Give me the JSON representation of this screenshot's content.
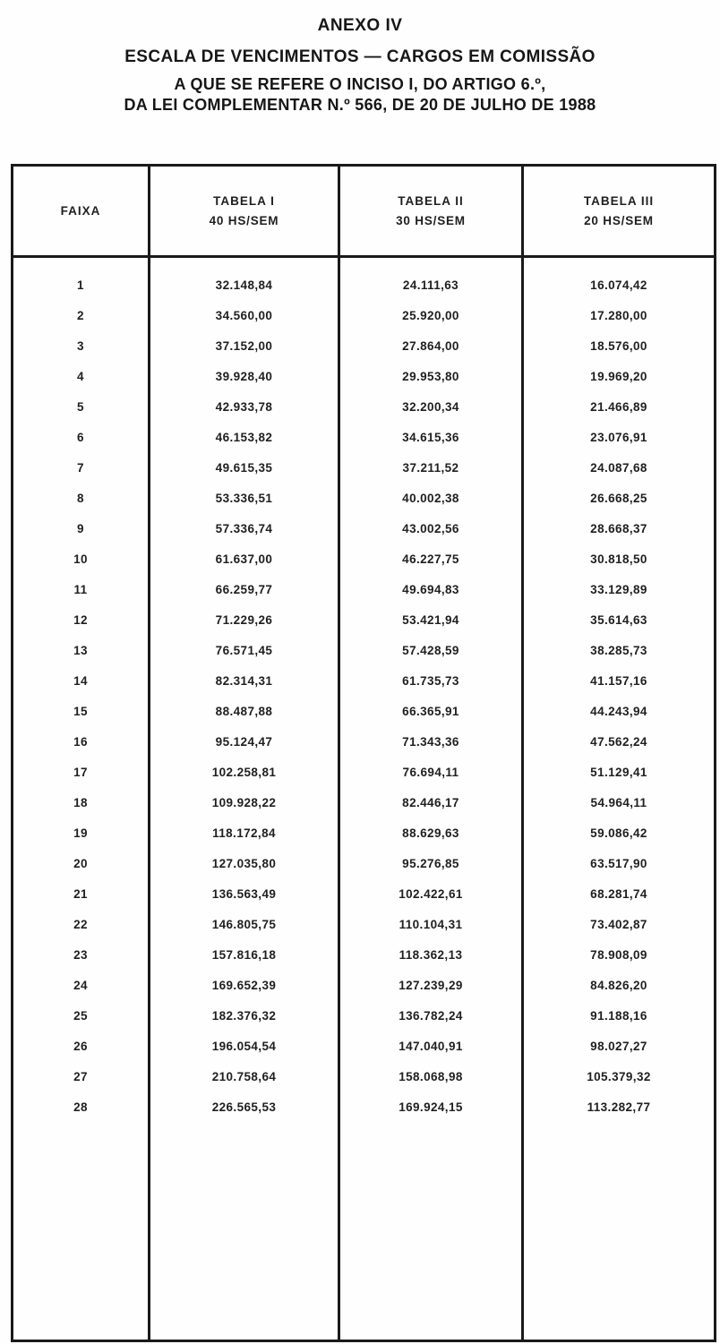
{
  "header": {
    "line1": "ANEXO IV",
    "line2": "ESCALA DE VENCIMENTOS — CARGOS EM COMISSÃO",
    "line3": "A QUE SE REFERE O INCISO I, DO ARTIGO 6.º,",
    "line4": "DA LEI COMPLEMENTAR N.º 566, DE 20 DE JULHO DE 1988"
  },
  "table": {
    "columns": [
      {
        "label": "FAIXA",
        "sub": ""
      },
      {
        "label": "TABELA I",
        "sub": "40 HS/SEM"
      },
      {
        "label": "TABELA II",
        "sub": "30 HS/SEM"
      },
      {
        "label": "TABELA III",
        "sub": "20 HS/SEM"
      }
    ],
    "rows": [
      {
        "faixa": "1",
        "t1": "32.148,84",
        "t2": "24.111,63",
        "t3": "16.074,42"
      },
      {
        "faixa": "2",
        "t1": "34.560,00",
        "t2": "25.920,00",
        "t3": "17.280,00"
      },
      {
        "faixa": "3",
        "t1": "37.152,00",
        "t2": "27.864,00",
        "t3": "18.576,00"
      },
      {
        "faixa": "4",
        "t1": "39.928,40",
        "t2": "29.953,80",
        "t3": "19.969,20"
      },
      {
        "faixa": "5",
        "t1": "42.933,78",
        "t2": "32.200,34",
        "t3": "21.466,89"
      },
      {
        "faixa": "6",
        "t1": "46.153,82",
        "t2": "34.615,36",
        "t3": "23.076,91"
      },
      {
        "faixa": "7",
        "t1": "49.615,35",
        "t2": "37.211,52",
        "t3": "24.087,68"
      },
      {
        "faixa": "8",
        "t1": "53.336,51",
        "t2": "40.002,38",
        "t3": "26.668,25"
      },
      {
        "faixa": "9",
        "t1": "57.336,74",
        "t2": "43.002,56",
        "t3": "28.668,37"
      },
      {
        "faixa": "10",
        "t1": "61.637,00",
        "t2": "46.227,75",
        "t3": "30.818,50"
      },
      {
        "faixa": "11",
        "t1": "66.259,77",
        "t2": "49.694,83",
        "t3": "33.129,89"
      },
      {
        "faixa": "12",
        "t1": "71.229,26",
        "t2": "53.421,94",
        "t3": "35.614,63"
      },
      {
        "faixa": "13",
        "t1": "76.571,45",
        "t2": "57.428,59",
        "t3": "38.285,73"
      },
      {
        "faixa": "14",
        "t1": "82.314,31",
        "t2": "61.735,73",
        "t3": "41.157,16"
      },
      {
        "faixa": "15",
        "t1": "88.487,88",
        "t2": "66.365,91",
        "t3": "44.243,94"
      },
      {
        "faixa": "16",
        "t1": "95.124,47",
        "t2": "71.343,36",
        "t3": "47.562,24"
      },
      {
        "faixa": "17",
        "t1": "102.258,81",
        "t2": "76.694,11",
        "t3": "51.129,41"
      },
      {
        "faixa": "18",
        "t1": "109.928,22",
        "t2": "82.446,17",
        "t3": "54.964,11"
      },
      {
        "faixa": "19",
        "t1": "118.172,84",
        "t2": "88.629,63",
        "t3": "59.086,42"
      },
      {
        "faixa": "20",
        "t1": "127.035,80",
        "t2": "95.276,85",
        "t3": "63.517,90"
      },
      {
        "faixa": "21",
        "t1": "136.563,49",
        "t2": "102.422,61",
        "t3": "68.281,74"
      },
      {
        "faixa": "22",
        "t1": "146.805,75",
        "t2": "110.104,31",
        "t3": "73.402,87"
      },
      {
        "faixa": "23",
        "t1": "157.816,18",
        "t2": "118.362,13",
        "t3": "78.908,09"
      },
      {
        "faixa": "24",
        "t1": "169.652,39",
        "t2": "127.239,29",
        "t3": "84.826,20"
      },
      {
        "faixa": "25",
        "t1": "182.376,32",
        "t2": "136.782,24",
        "t3": "91.188,16"
      },
      {
        "faixa": "26",
        "t1": "196.054,54",
        "t2": "147.040,91",
        "t3": "98.027,27"
      },
      {
        "faixa": "27",
        "t1": "210.758,64",
        "t2": "158.068,98",
        "t3": "105.379,32"
      },
      {
        "faixa": "28",
        "t1": "226.565,53",
        "t2": "169.924,15",
        "t3": "113.282,77"
      }
    ]
  }
}
